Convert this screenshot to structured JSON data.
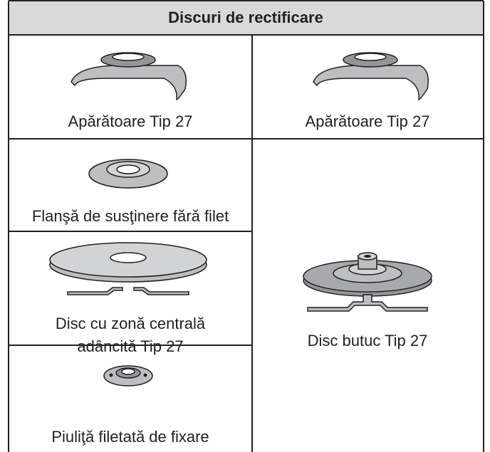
{
  "header": {
    "title": "Discuri de rectificare"
  },
  "table": {
    "rows": [
      [
        "Apărătoare Tip 27",
        "Apărătoare Tip 27"
      ],
      [
        "Flanşă de susţinere fără filet",
        "Disc butuc Tip 27"
      ],
      [
        [
          "Disc cu zonă centrală",
          "adâncită Tip 27"
        ]
      ],
      [
        "Piuliţă filetată de fixare"
      ]
    ]
  }
}
